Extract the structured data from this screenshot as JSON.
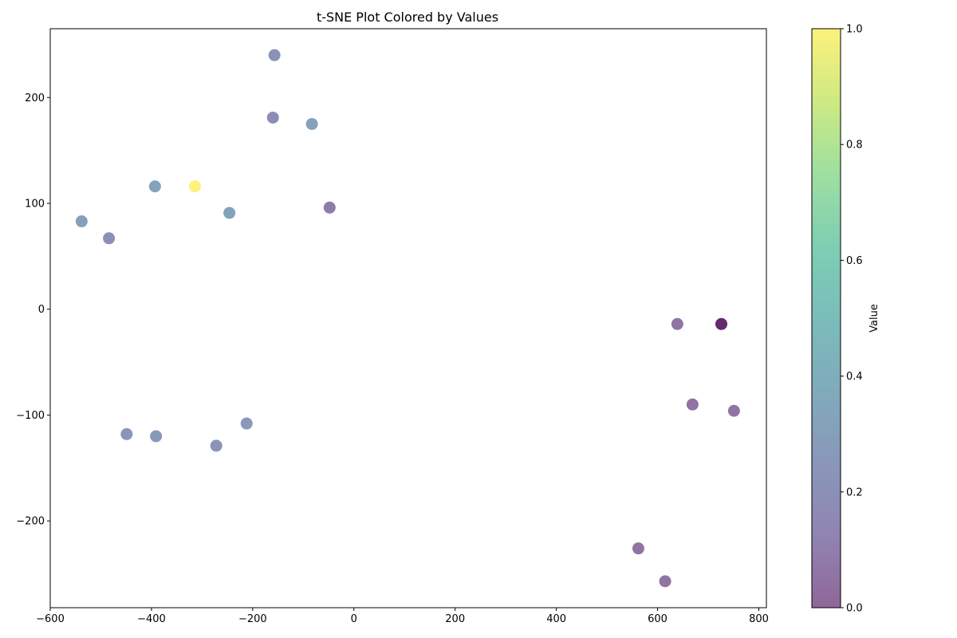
{
  "chart_data": {
    "type": "scatter",
    "title": "t-SNE Plot Colored by Values",
    "xlabel": "",
    "ylabel": "",
    "xlim": [
      -600,
      815
    ],
    "ylim": [
      -282,
      265
    ],
    "xticks": [
      -600,
      -400,
      -200,
      0,
      200,
      400,
      600,
      800
    ],
    "yticks": [
      -200,
      -100,
      0,
      100,
      200
    ],
    "colorbar": {
      "label": "Value",
      "range": [
        0.0,
        1.0
      ],
      "ticks": [
        "0.0",
        "0.2",
        "0.4",
        "0.6",
        "0.8",
        "1.0"
      ],
      "colormap": "viridis",
      "alpha": 0.6
    },
    "points": [
      {
        "x": -157,
        "y": 240,
        "value": 0.22
      },
      {
        "x": -160,
        "y": 181,
        "value": 0.18
      },
      {
        "x": -83,
        "y": 175,
        "value": 0.32
      },
      {
        "x": -393,
        "y": 116,
        "value": 0.32
      },
      {
        "x": -314,
        "y": 116,
        "value": 1.0
      },
      {
        "x": -246,
        "y": 91,
        "value": 0.33
      },
      {
        "x": -48,
        "y": 96,
        "value": 0.09
      },
      {
        "x": -538,
        "y": 83,
        "value": 0.3
      },
      {
        "x": -484,
        "y": 67,
        "value": 0.2
      },
      {
        "x": 639,
        "y": -14,
        "value": 0.06
      },
      {
        "x": 726,
        "y": -14,
        "value": 0.0
      },
      {
        "x": 726,
        "y": -14,
        "value": 0.0
      },
      {
        "x": 669,
        "y": -90,
        "value": 0.05
      },
      {
        "x": 751,
        "y": -96,
        "value": 0.06
      },
      {
        "x": -449,
        "y": -118,
        "value": 0.24
      },
      {
        "x": -391,
        "y": -120,
        "value": 0.27
      },
      {
        "x": -212,
        "y": -108,
        "value": 0.26
      },
      {
        "x": -272,
        "y": -129,
        "value": 0.23
      },
      {
        "x": 562,
        "y": -226,
        "value": 0.06
      },
      {
        "x": 615,
        "y": -257,
        "value": 0.06
      }
    ]
  }
}
